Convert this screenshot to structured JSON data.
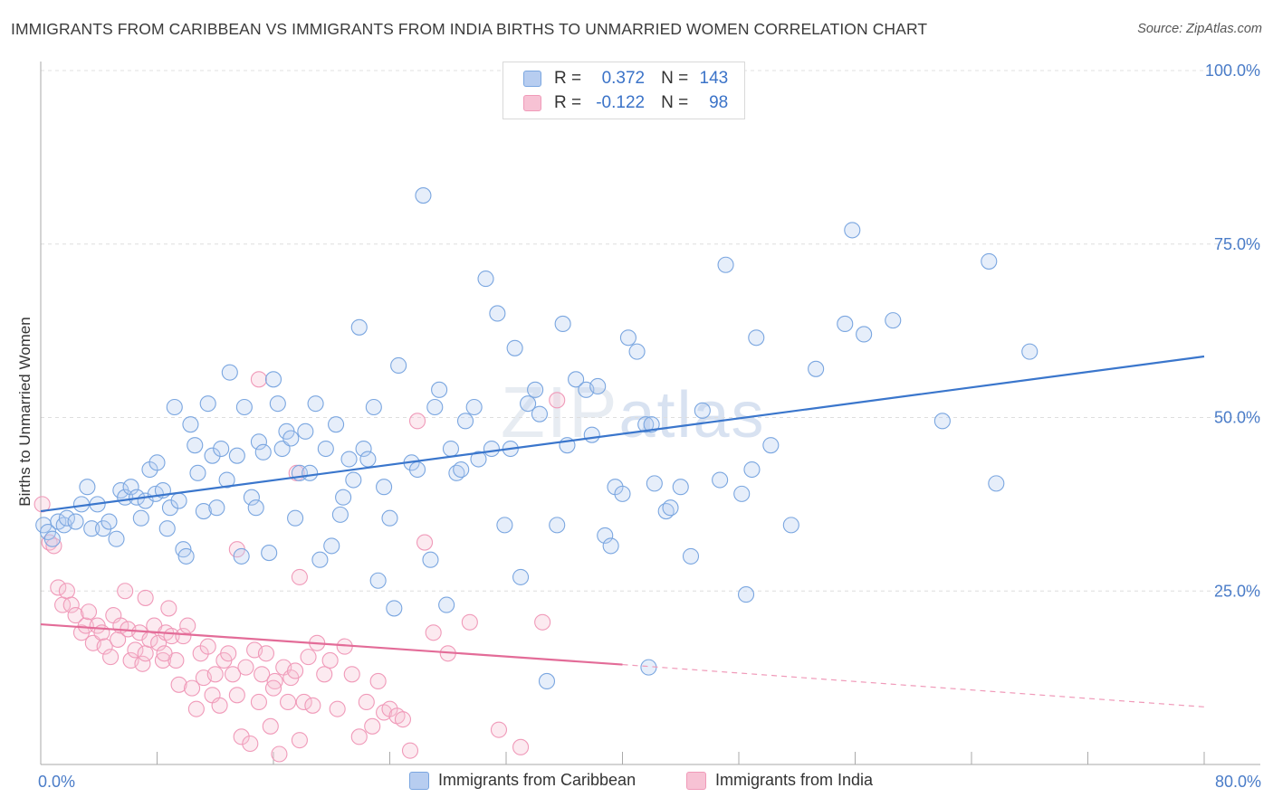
{
  "header": {
    "title": "IMMIGRANTS FROM CARIBBEAN VS IMMIGRANTS FROM INDIA BIRTHS TO UNMARRIED WOMEN CORRELATION CHART",
    "source": "Source: ZipAtlas.com"
  },
  "watermark": {
    "zip": "ZIP",
    "atlas": "atlas"
  },
  "legend_top": {
    "rows": [
      {
        "r_label": "R =",
        "r_value": "0.372",
        "n_label": "N =",
        "n_value": "143"
      },
      {
        "r_label": "R =",
        "r_value": "-0.122",
        "n_label": "N =",
        "n_value": "98"
      }
    ]
  },
  "colors": {
    "caribbean": "#7aa6e0",
    "caribbean_fill": "#b7cdf0",
    "caribbean_line": "#3a76cc",
    "india": "#f09ab9",
    "india_fill": "#f7c2d4",
    "india_line": "#e36c98",
    "tick_label": "#4a7cc8"
  },
  "chart_data": {
    "type": "scatter",
    "title": "IMMIGRANTS FROM CARIBBEAN VS IMMIGRANTS FROM INDIA BIRTHS TO UNMARRIED WOMEN CORRELATION CHART",
    "xlabel": "",
    "ylabel": "Births to Unmarried Women",
    "xlim": [
      0,
      80
    ],
    "ylim": [
      0,
      100
    ],
    "x_tick_labels": [
      "0.0%",
      "80.0%"
    ],
    "y_ticks": [
      25,
      50,
      75,
      100
    ],
    "y_tick_labels": [
      "25.0%",
      "50.0%",
      "75.0%",
      "100.0%"
    ],
    "grid": true,
    "legend_position": "bottom",
    "series": [
      {
        "name": "Immigrants from Caribbean",
        "r": 0.372,
        "n": 143,
        "trend": {
          "x0": 0,
          "y0": 36.5,
          "x1": 80,
          "y1": 58.8
        },
        "points": [
          [
            0.2,
            34.5
          ],
          [
            0.5,
            33.5
          ],
          [
            0.8,
            32.5
          ],
          [
            1.2,
            35
          ],
          [
            1.6,
            34.5
          ],
          [
            1.8,
            35.5
          ],
          [
            2.4,
            35
          ],
          [
            2.8,
            37.5
          ],
          [
            3.2,
            40
          ],
          [
            3.5,
            34
          ],
          [
            3.9,
            37.5
          ],
          [
            4.3,
            34
          ],
          [
            4.7,
            35
          ],
          [
            5.2,
            32.5
          ],
          [
            5.5,
            39.5
          ],
          [
            5.8,
            38.5
          ],
          [
            6.2,
            40
          ],
          [
            6.6,
            38.5
          ],
          [
            6.9,
            35.5
          ],
          [
            7.2,
            38
          ],
          [
            7.5,
            42.5
          ],
          [
            7.9,
            39
          ],
          [
            8.0,
            43.5
          ],
          [
            8.4,
            39.5
          ],
          [
            8.7,
            34
          ],
          [
            8.9,
            37
          ],
          [
            9.2,
            51.5
          ],
          [
            9.5,
            38
          ],
          [
            9.8,
            31
          ],
          [
            10.0,
            30
          ],
          [
            10.3,
            49
          ],
          [
            10.6,
            46
          ],
          [
            10.8,
            42
          ],
          [
            11.2,
            36.5
          ],
          [
            11.5,
            52
          ],
          [
            11.8,
            44.5
          ],
          [
            12.1,
            37
          ],
          [
            12.4,
            45.5
          ],
          [
            12.8,
            41
          ],
          [
            13.0,
            56.5
          ],
          [
            13.5,
            44.5
          ],
          [
            13.8,
            30
          ],
          [
            14.0,
            51.5
          ],
          [
            14.5,
            38.5
          ],
          [
            14.8,
            37
          ],
          [
            15.0,
            46.5
          ],
          [
            15.3,
            45
          ],
          [
            15.7,
            30.5
          ],
          [
            16.0,
            55.5
          ],
          [
            16.3,
            52
          ],
          [
            16.6,
            45.5
          ],
          [
            16.9,
            48
          ],
          [
            17.2,
            47
          ],
          [
            17.5,
            35.5
          ],
          [
            17.8,
            42
          ],
          [
            18.2,
            48
          ],
          [
            18.5,
            42
          ],
          [
            18.9,
            52
          ],
          [
            19.2,
            29.5
          ],
          [
            19.6,
            45.5
          ],
          [
            20.0,
            31.5
          ],
          [
            20.3,
            49
          ],
          [
            20.6,
            36
          ],
          [
            20.8,
            38.5
          ],
          [
            21.2,
            44
          ],
          [
            21.5,
            41
          ],
          [
            21.9,
            63
          ],
          [
            22.2,
            45.5
          ],
          [
            22.5,
            44
          ],
          [
            22.9,
            51.5
          ],
          [
            23.2,
            26.5
          ],
          [
            23.6,
            40
          ],
          [
            24.0,
            35.5
          ],
          [
            24.3,
            22.5
          ],
          [
            24.6,
            57.5
          ],
          [
            25.5,
            43.5
          ],
          [
            25.9,
            42.5
          ],
          [
            26.3,
            82
          ],
          [
            26.8,
            29.5
          ],
          [
            27.1,
            51.5
          ],
          [
            27.4,
            54
          ],
          [
            27.9,
            23
          ],
          [
            28.2,
            45.5
          ],
          [
            28.6,
            42
          ],
          [
            28.9,
            42.5
          ],
          [
            29.2,
            49.5
          ],
          [
            29.8,
            51.5
          ],
          [
            30.1,
            44
          ],
          [
            30.6,
            70
          ],
          [
            31.0,
            45.5
          ],
          [
            31.4,
            65
          ],
          [
            31.9,
            34.5
          ],
          [
            32.3,
            45.5
          ],
          [
            32.6,
            60
          ],
          [
            33.0,
            27
          ],
          [
            33.5,
            52
          ],
          [
            34.0,
            54
          ],
          [
            34.3,
            50.5
          ],
          [
            34.8,
            12
          ],
          [
            35.5,
            34.5
          ],
          [
            35.9,
            63.5
          ],
          [
            36.2,
            46
          ],
          [
            36.8,
            55.5
          ],
          [
            37.5,
            54
          ],
          [
            37.9,
            47.5
          ],
          [
            38.3,
            54.5
          ],
          [
            38.8,
            33
          ],
          [
            39.2,
            31.5
          ],
          [
            39.5,
            40
          ],
          [
            40.0,
            39
          ],
          [
            40.4,
            61.5
          ],
          [
            41.0,
            59.5
          ],
          [
            41.6,
            49
          ],
          [
            42.0,
            49
          ],
          [
            42.2,
            40.5
          ],
          [
            43.0,
            36.5
          ],
          [
            43.3,
            37
          ],
          [
            44.0,
            40
          ],
          [
            44.7,
            30
          ],
          [
            45.5,
            51
          ],
          [
            46.7,
            41
          ],
          [
            47.1,
            72
          ],
          [
            48.2,
            39
          ],
          [
            48.5,
            24.5
          ],
          [
            48.9,
            42.5
          ],
          [
            49.2,
            61.5
          ],
          [
            50.2,
            46
          ],
          [
            51.6,
            34.5
          ],
          [
            53.3,
            57
          ],
          [
            55.3,
            63.5
          ],
          [
            55.8,
            77
          ],
          [
            56.6,
            62
          ],
          [
            58.6,
            64
          ],
          [
            62.0,
            49.5
          ],
          [
            65.2,
            72.5
          ],
          [
            65.7,
            40.5
          ],
          [
            68.0,
            59.5
          ],
          [
            41.8,
            14
          ]
        ]
      },
      {
        "name": "Immigrants from India",
        "r": -0.122,
        "n": 98,
        "trend": {
          "x0": 0,
          "y0": 20.2,
          "x1": 40,
          "y1": 14.4
        },
        "trend_dashed": {
          "x0": 40,
          "y0": 14.4,
          "x1": 80,
          "y1": 8.3
        },
        "points": [
          [
            0.1,
            37.5
          ],
          [
            0.6,
            32
          ],
          [
            0.9,
            31.5
          ],
          [
            1.2,
            25.5
          ],
          [
            1.5,
            23
          ],
          [
            1.8,
            25
          ],
          [
            2.1,
            23
          ],
          [
            2.4,
            21.5
          ],
          [
            2.8,
            19
          ],
          [
            3.1,
            20
          ],
          [
            3.3,
            22
          ],
          [
            3.6,
            17.5
          ],
          [
            3.9,
            20
          ],
          [
            4.2,
            19
          ],
          [
            4.4,
            17
          ],
          [
            4.8,
            15.5
          ],
          [
            5.0,
            21.5
          ],
          [
            5.3,
            18
          ],
          [
            5.5,
            20
          ],
          [
            5.8,
            25
          ],
          [
            6.0,
            19.5
          ],
          [
            6.2,
            15
          ],
          [
            6.5,
            16.5
          ],
          [
            6.8,
            19
          ],
          [
            7.0,
            14.5
          ],
          [
            7.2,
            16
          ],
          [
            7.5,
            18
          ],
          [
            7.8,
            20
          ],
          [
            8.1,
            17.5
          ],
          [
            8.4,
            15
          ],
          [
            8.6,
            19
          ],
          [
            8.8,
            22.5
          ],
          [
            9.0,
            18.5
          ],
          [
            9.3,
            15
          ],
          [
            9.5,
            11.5
          ],
          [
            9.8,
            18.5
          ],
          [
            10.1,
            20
          ],
          [
            10.4,
            11
          ],
          [
            10.7,
            8
          ],
          [
            11.0,
            16
          ],
          [
            11.2,
            12.5
          ],
          [
            11.5,
            17
          ],
          [
            11.8,
            10
          ],
          [
            12.0,
            13
          ],
          [
            12.3,
            8.5
          ],
          [
            12.6,
            15
          ],
          [
            12.9,
            16
          ],
          [
            13.2,
            13
          ],
          [
            13.5,
            10
          ],
          [
            13.8,
            4
          ],
          [
            14.1,
            14
          ],
          [
            14.4,
            3
          ],
          [
            14.7,
            16.5
          ],
          [
            15.0,
            9
          ],
          [
            15.2,
            13
          ],
          [
            15.5,
            16
          ],
          [
            15.8,
            5.5
          ],
          [
            16.1,
            12
          ],
          [
            16.4,
            1.5
          ],
          [
            16.7,
            14
          ],
          [
            17.0,
            9
          ],
          [
            17.2,
            12.5
          ],
          [
            17.5,
            13.5
          ],
          [
            17.8,
            3.5
          ],
          [
            18.1,
            9
          ],
          [
            18.4,
            15.5
          ],
          [
            18.7,
            8.5
          ],
          [
            19.0,
            17.5
          ],
          [
            19.5,
            13
          ],
          [
            19.9,
            15
          ],
          [
            20.4,
            8
          ],
          [
            20.9,
            17
          ],
          [
            21.4,
            13
          ],
          [
            21.9,
            4
          ],
          [
            22.4,
            9
          ],
          [
            22.8,
            5.5
          ],
          [
            23.2,
            12
          ],
          [
            23.6,
            7.5
          ],
          [
            24.0,
            8
          ],
          [
            24.5,
            7
          ],
          [
            24.9,
            6.5
          ],
          [
            25.4,
            2
          ],
          [
            25.9,
            49.5
          ],
          [
            26.4,
            32
          ],
          [
            27.0,
            19
          ],
          [
            28.0,
            16
          ],
          [
            29.5,
            20.5
          ],
          [
            31.5,
            5
          ],
          [
            33.0,
            2.5
          ],
          [
            34.5,
            20.5
          ],
          [
            35.5,
            52.5
          ],
          [
            17.6,
            42
          ],
          [
            15.0,
            55.5
          ],
          [
            13.5,
            31
          ],
          [
            17.8,
            27
          ],
          [
            7.2,
            24
          ],
          [
            8.5,
            16
          ],
          [
            16.0,
            11
          ]
        ]
      }
    ]
  }
}
